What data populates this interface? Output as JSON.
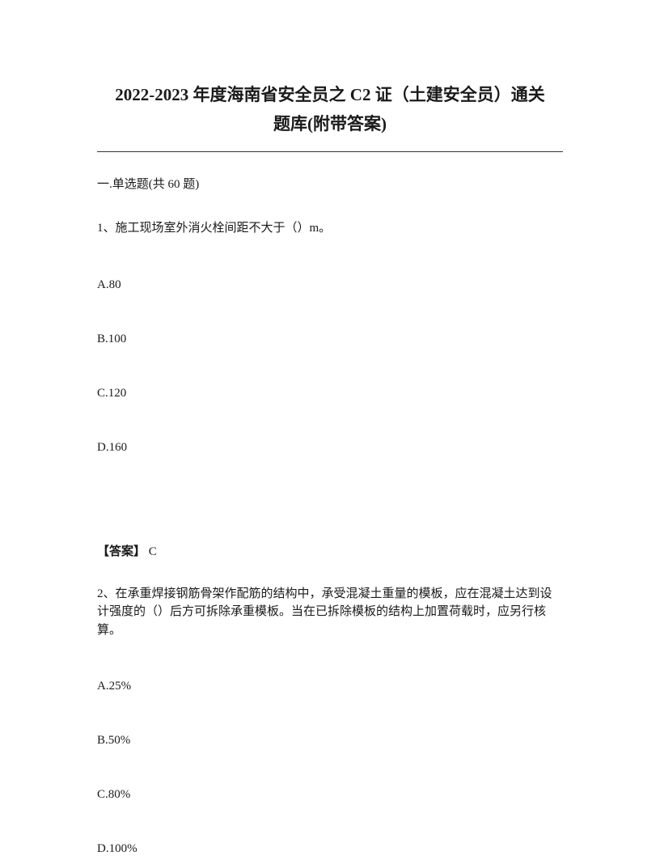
{
  "title_line1": "2022-2023 年度海南省安全员之 C2 证（土建安全员）通关",
  "title_line2": "题库(附带答案)",
  "section_header": "一.单选题(共 60 题)",
  "question1": {
    "text": "1、施工现场室外消火栓间距不大于（）m。",
    "options": {
      "a": "A.80",
      "b": "B.100",
      "c": "C.120",
      "d": "D.160"
    },
    "answer_label": "【答案】",
    "answer_value": " C"
  },
  "question2": {
    "text": "2、在承重焊接钢筋骨架作配筋的结构中，承受混凝土重量的模板，应在混凝土达到设计强度的（）后方可拆除承重模板。当在已拆除模板的结构上加置荷载时，应另行核算。",
    "options": {
      "a": "A.25%",
      "b": "B.50%",
      "c": "C.80%",
      "d": "D.100%"
    }
  }
}
